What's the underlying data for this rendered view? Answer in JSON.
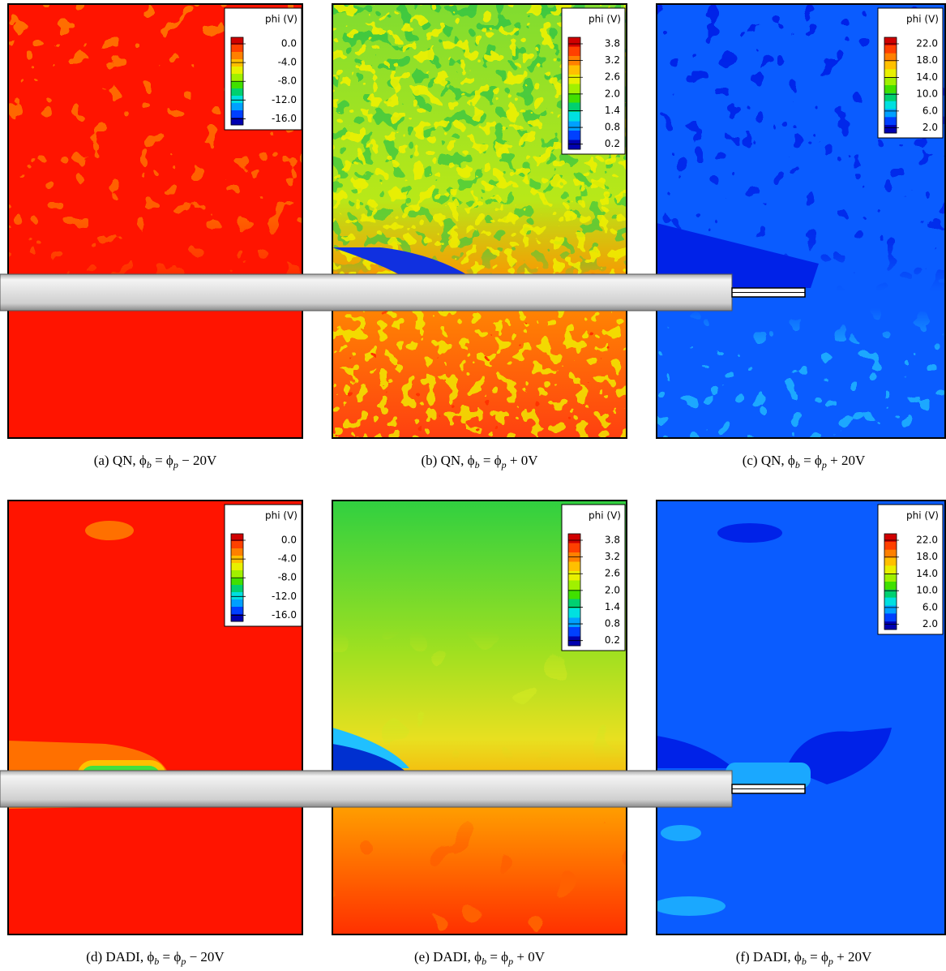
{
  "panels": [
    {
      "legend": {
        "title": "phi (V)",
        "labels": [
          "0.0",
          "-4.0",
          "-8.0",
          "-12.0",
          "-16.0"
        ]
      },
      "caption": {
        "prefix": "(a) QN, ϕ",
        "sub1": "b",
        "mid": " = ϕ",
        "sub2": "p",
        "suffix": " − 20V"
      }
    },
    {
      "legend": {
        "title": "phi (V)",
        "labels": [
          "3.8",
          "3.2",
          "2.6",
          "2.0",
          "1.4",
          "0.8",
          "0.2"
        ]
      },
      "caption": {
        "prefix": "(b) QN, ϕ",
        "sub1": "b",
        "mid": " = ϕ",
        "sub2": "p",
        "suffix": " + 0V"
      }
    },
    {
      "legend": {
        "title": "phi (V)",
        "labels": [
          "22.0",
          "18.0",
          "14.0",
          "10.0",
          "6.0",
          "2.0"
        ]
      },
      "caption": {
        "prefix": "(c) QN, ϕ",
        "sub1": "b",
        "mid": " = ϕ",
        "sub2": "p",
        "suffix": " + 20V"
      }
    },
    {
      "legend": {
        "title": "phi (V)",
        "labels": [
          "0.0",
          "-4.0",
          "-8.0",
          "-12.0",
          "-16.0"
        ]
      },
      "caption": {
        "prefix": "(d) DADI, ϕ",
        "sub1": "b",
        "mid": " = ϕ",
        "sub2": "p",
        "suffix": " − 20V"
      }
    },
    {
      "legend": {
        "title": "phi (V)",
        "labels": [
          "3.8",
          "3.2",
          "2.6",
          "2.0",
          "1.4",
          "0.8",
          "0.2"
        ]
      },
      "caption": {
        "prefix": "(e) DADI, ϕ",
        "sub1": "b",
        "mid": " = ϕ",
        "sub2": "p",
        "suffix": " + 0V"
      }
    },
    {
      "legend": {
        "title": "phi (V)",
        "labels": [
          "22.0",
          "18.0",
          "14.0",
          "10.0",
          "6.0",
          "2.0"
        ]
      },
      "caption": {
        "prefix": "(f) DADI, ϕ",
        "sub1": "b",
        "mid": " = ϕ",
        "sub2": "p",
        "suffix": " + 20V"
      }
    }
  ]
}
